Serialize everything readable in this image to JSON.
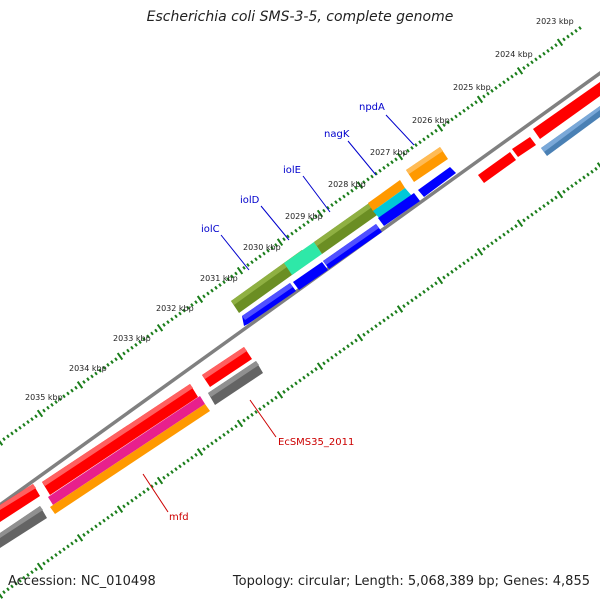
{
  "title": "Escherichia coli SMS-3-5, complete genome",
  "footer": {
    "accession": "Accession: NC_010498",
    "summary": "Topology: circular; Length: 5,068,389 bp; Genes: 4,855"
  },
  "scale": {
    "tick_labels": [
      "2023 kbp",
      "2024 kbp",
      "2025 kbp",
      "2026 kbp",
      "2027 kbp",
      "2028 kbp",
      "2029 kbp",
      "2030 kbp",
      "2031 kbp",
      "2032 kbp",
      "2033 kbp",
      "2034 kbp",
      "2035 kbp"
    ]
  },
  "gene_labels": {
    "npdA": "npdA",
    "nagK": "nagK",
    "iolE": "iolE",
    "iolD": "iolD",
    "iolC": "iolC",
    "EcSMS35_2011": "EcSMS35_2011",
    "mfd": "mfd"
  },
  "colors": {
    "background": "#ffffff",
    "backbone": "#808080",
    "tick": "#1a7d1a",
    "forward_cds": "#ff0000",
    "reverse_cds": "#0000ff",
    "gray_feature": "#646464",
    "olive_feature": "#6b8e23",
    "aqua_feature": "#2ee8a8",
    "cyan_feature": "#00c8d8",
    "orange_feature": "#ff9900",
    "steelblue_feature": "#4a80b4",
    "magenta_feature": "#e8208c",
    "upper_label": "#0000cc",
    "lower_label": "#cc0000"
  }
}
